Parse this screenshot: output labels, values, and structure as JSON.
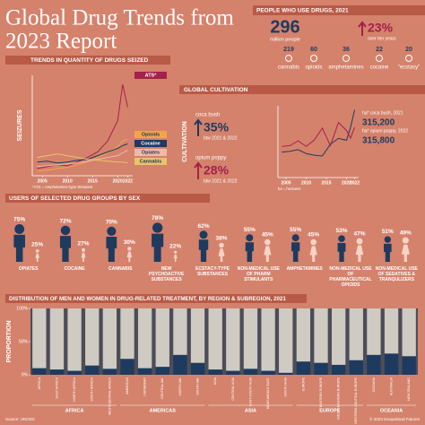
{
  "title_lines": [
    "Global Drug Trends from",
    "2023 Report"
  ],
  "people": {
    "heading": "PEOPLE WHO USE DRUGS, 2021",
    "total": "296",
    "total_unit": "million people",
    "change": "23%",
    "change_label": "over ten years",
    "drugs": [
      {
        "value": "219",
        "label": "cannabis"
      },
      {
        "value": "60",
        "label": "opioids"
      },
      {
        "value": "36",
        "label": "amphetamines"
      },
      {
        "value": "22",
        "label": "cocaine"
      },
      {
        "value": "20",
        "label": "\"ecstasy\""
      }
    ]
  },
  "chart_data": [
    {
      "type": "line",
      "title": "TRENDS IN QUANTITY OF DRUGS SEIZED",
      "y_label": "SEIZURES",
      "note": "*ATS = Amphetamine-type stimulant",
      "x": [
        2004,
        2006,
        2008,
        2010,
        2012,
        2014,
        2016,
        2018,
        2020,
        2021,
        2022
      ],
      "xlim": [
        2003,
        2023
      ],
      "xticks": [
        2005,
        2010,
        2015,
        2020,
        2022
      ],
      "ylim": [
        0,
        110
      ],
      "series": [
        {
          "name": "ATS*",
          "color": "#a3214a",
          "values": [
            8,
            10,
            12,
            11,
            15,
            20,
            26,
            38,
            60,
            100,
            75
          ]
        },
        {
          "name": "Opioids",
          "color": "#f0a54a",
          "values": [
            5,
            6,
            8,
            9,
            12,
            15,
            20,
            25,
            32,
            38,
            40
          ]
        },
        {
          "name": "Cocaine",
          "color": "#1f3a5f",
          "values": [
            15,
            16,
            14,
            15,
            17,
            18,
            22,
            26,
            30,
            33,
            35
          ]
        },
        {
          "name": "Opiates",
          "color": "#f2b8a8",
          "values": [
            10,
            11,
            12,
            13,
            14,
            16,
            18,
            20,
            22,
            25,
            28
          ]
        },
        {
          "name": "Cannabis",
          "color": "#e8c46a",
          "values": [
            20,
            22,
            24,
            22,
            20,
            18,
            17,
            16,
            15,
            15,
            14
          ]
        }
      ]
    },
    {
      "type": "line",
      "title": "GLOBAL CULTIVATION",
      "y_label": "CULTIVATION",
      "note": "ha = hectares",
      "x": [
        2004,
        2006,
        2008,
        2010,
        2012,
        2014,
        2016,
        2018,
        2020,
        2021,
        2022
      ],
      "xlim": [
        2003,
        2023
      ],
      "xticks": [
        2005,
        2010,
        2015,
        2020,
        2022
      ],
      "ylim": [
        0,
        450000
      ],
      "series": [
        {
          "name": "coca bush",
          "color": "#1f3a5f",
          "values": [
            160000,
            165000,
            175000,
            150000,
            140000,
            135000,
            210000,
            245000,
            234000,
            315200,
            425000
          ]
        },
        {
          "name": "opium poppy",
          "color": "#a3214a",
          "values": [
            195000,
            200000,
            230000,
            195000,
            235000,
            310000,
            200000,
            345000,
            295000,
            247000,
            315800
          ]
        }
      ],
      "changes": [
        {
          "change": "35%",
          "period": "btw 2021 & 2022"
        },
        {
          "change": "28%",
          "period": "btw 2021 & 2022"
        }
      ],
      "end_labels": [
        {
          "label": "ha* coca bush, 2021",
          "value": "315,200"
        },
        {
          "label": "ha* opium poppy, 2022",
          "value": "315,800"
        }
      ]
    },
    {
      "type": "pictogram",
      "title": "USERS OF SELECTED DRUG GROUPS BY SEX",
      "categories": [
        "OPIATES",
        "COCAINE",
        "CANNABIS",
        "NEW PSYCHOACTIVE SUBSTANCES",
        "ECSTACY-TYPE SUBSTANCES",
        "NON-MEDICAL USE OF PHARM STIMULANTS",
        "AMPHETAMINES",
        "NON-MEDICAL USE OF PHARMACEUTICAL OPIOIDS",
        "NON-MEDICAL USE OF SEDATIVES & TRANQULIZERS"
      ],
      "ylim": [
        0,
        100
      ],
      "series": [
        {
          "color": "#1f3a5f",
          "values": [
            75,
            72,
            70,
            78,
            62,
            55,
            55,
            53,
            51
          ],
          "value_labels": [
            "75%",
            "72%",
            "70%",
            "78%",
            "62%",
            "55%",
            "55%",
            "53%",
            "51%"
          ]
        },
        {
          "color": "#f6d3c6",
          "values": [
            25,
            27,
            30,
            22,
            38,
            45,
            45,
            47,
            49
          ],
          "value_labels": [
            "25%",
            "27%",
            "30%",
            "22%",
            "38%",
            "45%",
            "45%",
            "47%",
            "49%"
          ]
        }
      ]
    },
    {
      "type": "stacked_bar",
      "title": "DISTRIBUTION OF MEN AND WOMEN IN DRUG-RELATED TREATMENT, BY REGION & SUBREGION, 2021",
      "y_label": "PROPORTION",
      "categories": [
        "AFRICA",
        "EAST AFRICA",
        "NORTH AFRICA",
        "SOUTH AFRICA",
        "WEST-CENTRAL AFRICA",
        "AMERICAS",
        "CARIBBEAN",
        "CENTRAL AM.",
        "NORTH AM.",
        "SOUTH AM.",
        "ASIA",
        "CENTRAL ASIA",
        "EAST-SOUTH ASIA",
        "NEAR-MIDDLE EAST",
        "SOUTH ASIA",
        "EUROPE",
        "EASTERN EUROPE",
        "SOUTH-EASTERN EUROPE",
        "WESTERN CENTRAL EUROPE",
        "OCEANIA",
        "AUSTRALIA",
        "NEW ZEALAND"
      ],
      "groups": [
        "AFRICA",
        "AMERICAS",
        "ASIA",
        "EUROPE",
        "OCEANIA"
      ],
      "ylim": [
        0,
        100
      ],
      "yticks": [
        {
          "value": 0,
          "label": "0%"
        },
        {
          "value": 50,
          "label": "50%"
        },
        {
          "value": 100,
          "label": "100%"
        }
      ],
      "series": [
        {
          "color": "#1f3a5f",
          "values": [
            10,
            8,
            6,
            14,
            9,
            24,
            10,
            12,
            30,
            18,
            8,
            6,
            9,
            6,
            3,
            20,
            18,
            15,
            22,
            30,
            32,
            28
          ]
        },
        {
          "color": "#cfcac2",
          "values": [
            90,
            92,
            94,
            86,
            91,
            76,
            90,
            88,
            70,
            82,
            92,
            94,
            91,
            94,
            97,
            80,
            82,
            85,
            78,
            70,
            68,
            72
          ]
        }
      ]
    }
  ],
  "source": "Source: UNODC",
  "credit": "© 2023 Geopolitical Futures"
}
